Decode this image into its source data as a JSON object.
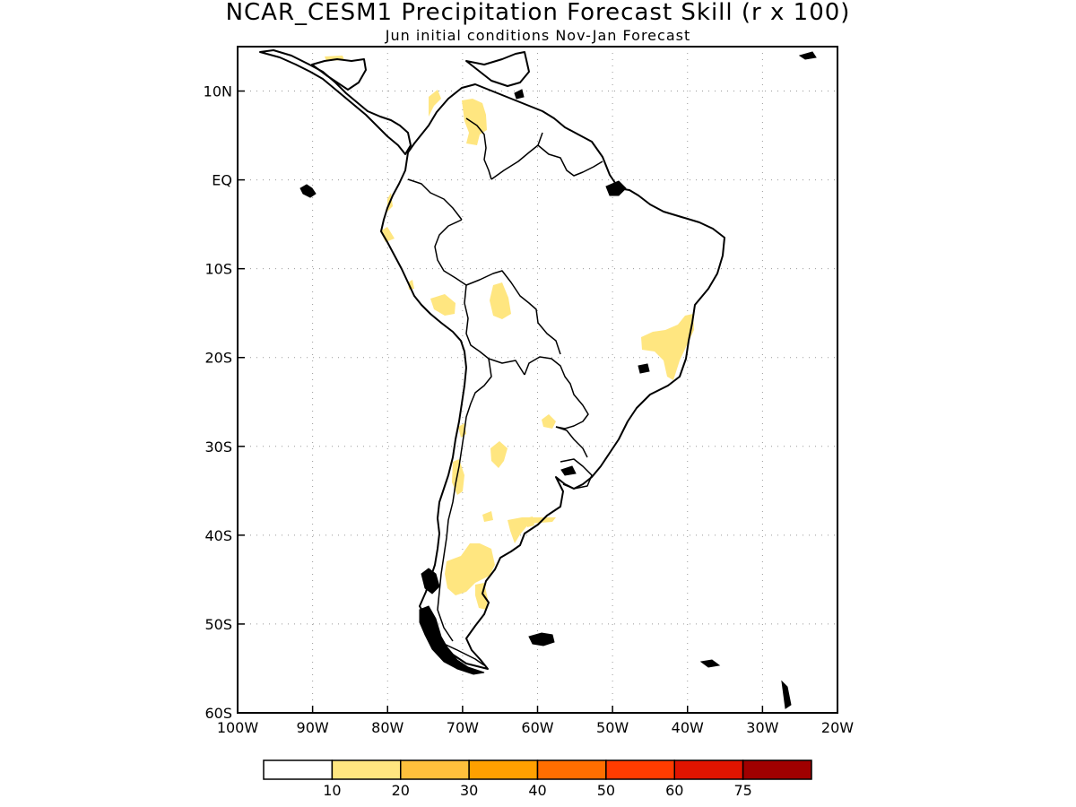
{
  "title": "NCAR_CESM1 Precipitation Forecast Skill (r x 100)",
  "subtitle": "Jun initial conditions  Nov-Jan Forecast",
  "map": {
    "lon_range": [
      -100,
      -20
    ],
    "lat_range": [
      -60,
      15
    ],
    "x_ticks": [
      {
        "value": -100,
        "label": "100W"
      },
      {
        "value": -90,
        "label": "90W"
      },
      {
        "value": -80,
        "label": "80W"
      },
      {
        "value": -70,
        "label": "70W"
      },
      {
        "value": -60,
        "label": "60W"
      },
      {
        "value": -50,
        "label": "50W"
      },
      {
        "value": -40,
        "label": "40W"
      },
      {
        "value": -30,
        "label": "30W"
      },
      {
        "value": -20,
        "label": "20W"
      }
    ],
    "y_ticks": [
      {
        "value": 10,
        "label": "10N"
      },
      {
        "value": 0,
        "label": "EQ"
      },
      {
        "value": -10,
        "label": "10S"
      },
      {
        "value": -20,
        "label": "20S"
      },
      {
        "value": -30,
        "label": "30S"
      },
      {
        "value": -40,
        "label": "40S"
      },
      {
        "value": -50,
        "label": "50S"
      },
      {
        "value": -60,
        "label": "60S"
      }
    ],
    "grid": true,
    "skill_color": "#ffe680"
  },
  "colorbar": {
    "colors": [
      "#ffffff",
      "#ffe680",
      "#ffc03c",
      "#ffa000",
      "#ff6e00",
      "#ff3c00",
      "#e01400",
      "#a00000"
    ],
    "labels": [
      "10",
      "20",
      "30",
      "40",
      "50",
      "60",
      "75"
    ]
  }
}
